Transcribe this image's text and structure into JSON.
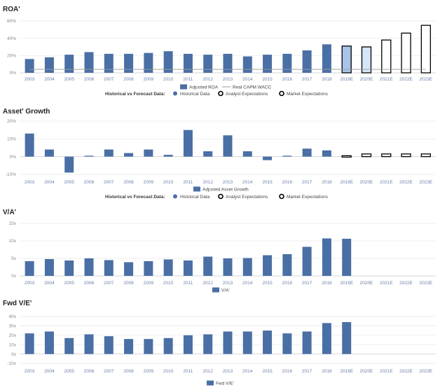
{
  "years": [
    "2003",
    "2004",
    "2005",
    "2006",
    "2007",
    "2008",
    "2009",
    "2010",
    "2011",
    "2012",
    "2013",
    "2014",
    "2015",
    "2016",
    "2017",
    "2018",
    "2019E",
    "2020E",
    "2021E",
    "2022E",
    "2023E"
  ],
  "colors": {
    "historical": "#4a6fa5",
    "analyst_fill": "#a9c4e8",
    "analyst_fill_light": "#d6e6fa",
    "market": "#000000",
    "wacc": "#999999",
    "grid": "#e6e6e6"
  },
  "legend": {
    "hvf_label": "Historical vs Forecast Data:",
    "historical": "Historical Data",
    "analyst": "Analyst Expectations",
    "market": "Market Expectations"
  },
  "chart_data": [
    {
      "title": "ROA'",
      "type": "bar",
      "yticks": [
        "0%",
        "20%",
        "40%",
        "60%"
      ],
      "ylim": [
        0,
        60
      ],
      "series": [
        {
          "name": "Adjusted ROA",
          "values": [
            16,
            18,
            21,
            24,
            22,
            22,
            23,
            25,
            22,
            21,
            22,
            19,
            21,
            22,
            26,
            33
          ]
        },
        {
          "name": "Real CAPM WACC",
          "values": [
            4,
            4,
            4,
            4,
            4,
            4,
            4,
            4,
            4,
            4,
            4,
            4,
            4,
            4,
            4,
            4,
            4,
            4,
            4,
            4,
            4
          ]
        }
      ],
      "analyst": {
        "categories": [
          "2019E",
          "2020E"
        ],
        "values": [
          31,
          30
        ]
      },
      "market": {
        "categories": [
          "2019E",
          "2020E",
          "2021E",
          "2022E",
          "2023E"
        ],
        "values": [
          31,
          30,
          38,
          46,
          55
        ]
      }
    },
    {
      "title": "Asset' Growth",
      "type": "bar",
      "yticks": [
        "-10%",
        "0%",
        "10%",
        "20%"
      ],
      "ylim": [
        -10,
        20
      ],
      "series": [
        {
          "name": "Adjusted Asset Growth",
          "values": [
            13,
            4,
            -9,
            0.5,
            4,
            2,
            4,
            1,
            15,
            3,
            12,
            3,
            -2,
            0.5,
            4.5,
            3.5
          ]
        }
      ],
      "analyst": {
        "categories": [
          "2019E"
        ],
        "values": [
          0.5
        ]
      },
      "market": {
        "categories": [
          "2019E",
          "2020E",
          "2021E",
          "2022E",
          "2023E"
        ],
        "values": [
          0.5,
          1.5,
          1.5,
          1.5,
          1.5
        ]
      }
    },
    {
      "title": "V/A'",
      "type": "bar",
      "yticks": [
        "0x",
        "5x",
        "10x",
        "15x"
      ],
      "ylim": [
        0,
        15
      ],
      "series": [
        {
          "name": "V/A'",
          "values": [
            4.2,
            4.8,
            4.4,
            5.0,
            4.5,
            3.9,
            4.2,
            4.7,
            4.4,
            5.5,
            5.0,
            5.1,
            5.9,
            6.2,
            8.3,
            10.7,
            10.6
          ]
        }
      ]
    },
    {
      "title": "Fwd V/E'",
      "type": "bar",
      "yticks": [
        "-10x",
        "0x",
        "10x",
        "20x",
        "30x",
        "40x"
      ],
      "ylim": [
        -10,
        40
      ],
      "series": [
        {
          "name": "Fwd V/E'",
          "values": [
            22,
            24,
            17,
            21,
            19,
            16,
            16,
            17,
            20,
            21,
            24,
            24,
            25,
            22,
            24,
            33,
            34
          ]
        }
      ]
    }
  ]
}
